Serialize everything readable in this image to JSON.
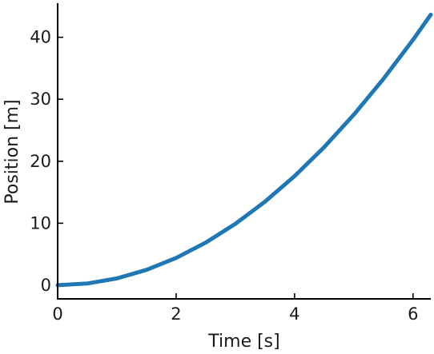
{
  "chart_data": {
    "type": "line",
    "title": "",
    "xlabel": "Time [s]",
    "ylabel": "Position [m]",
    "xlim": [
      0,
      6.3
    ],
    "ylim": [
      -2.2,
      45.5
    ],
    "xticks": [
      0,
      2,
      4,
      6
    ],
    "yticks": [
      0,
      10,
      20,
      30,
      40
    ],
    "xtick_labels": [
      "0",
      "2",
      "4",
      "6"
    ],
    "ytick_labels": [
      "0",
      "10",
      "20",
      "30",
      "40"
    ],
    "grid": false,
    "legend": "none",
    "series": [
      {
        "color": "#1f77b4",
        "x": [
          0,
          0.5,
          1.0,
          1.5,
          2.0,
          2.5,
          3.0,
          3.5,
          4.0,
          4.5,
          5.0,
          5.5,
          6.0,
          6.3
        ],
        "y": [
          0,
          0.28,
          1.1,
          2.48,
          4.4,
          6.88,
          9.9,
          13.48,
          17.6,
          22.28,
          27.5,
          33.28,
          39.6,
          43.66
        ]
      }
    ]
  }
}
